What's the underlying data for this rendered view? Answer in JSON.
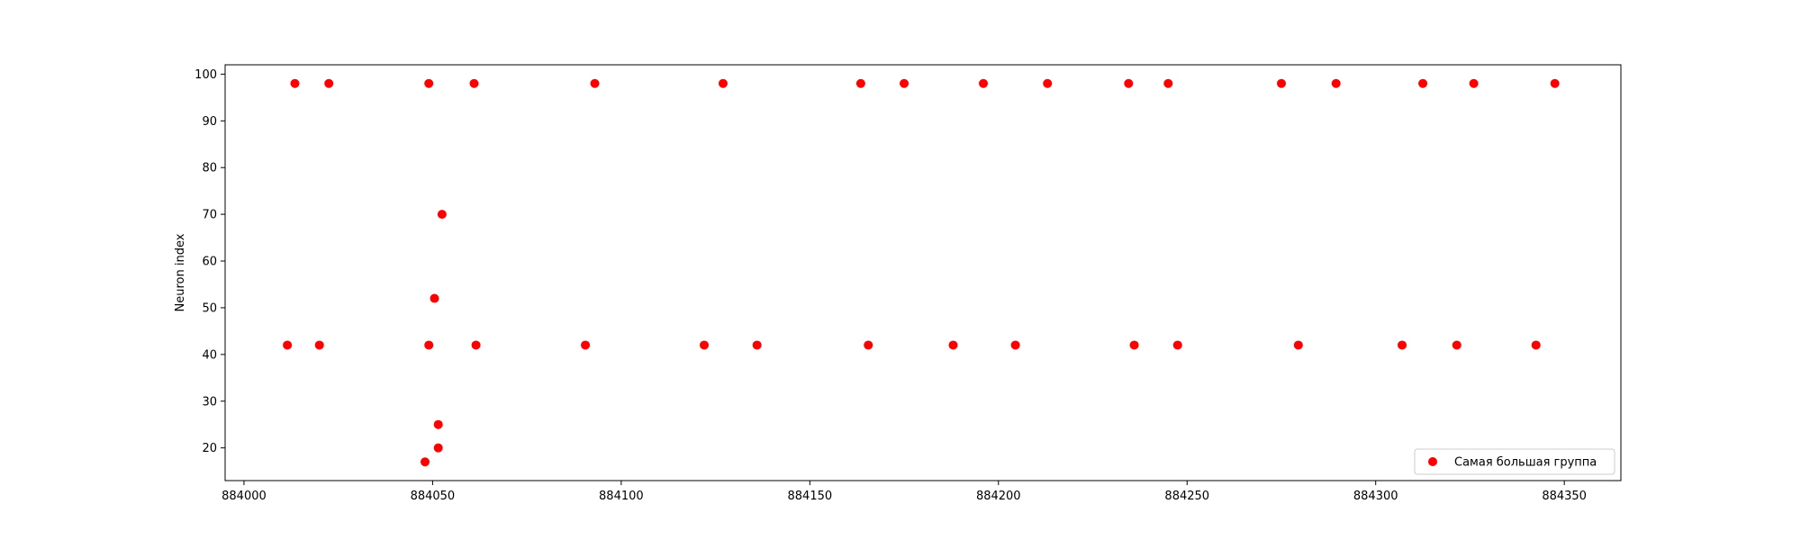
{
  "chart_data": {
    "type": "scatter",
    "title": "",
    "xlabel": "",
    "ylabel": "Neuron index",
    "xlim": [
      883995,
      884365
    ],
    "ylim": [
      13,
      102
    ],
    "xticks": [
      884000,
      884050,
      884100,
      884150,
      884200,
      884250,
      884300,
      884350
    ],
    "yticks": [
      20,
      30,
      40,
      50,
      60,
      70,
      80,
      90,
      100
    ],
    "grid": false,
    "legend_position": "lower-right",
    "series": [
      {
        "name": "Самая большая группа",
        "color": "#ff0000",
        "points": [
          {
            "x": 884013.5,
            "y": 98
          },
          {
            "x": 884022.5,
            "y": 98
          },
          {
            "x": 884049,
            "y": 98
          },
          {
            "x": 884061,
            "y": 98
          },
          {
            "x": 884093,
            "y": 98
          },
          {
            "x": 884127,
            "y": 98
          },
          {
            "x": 884163.5,
            "y": 98
          },
          {
            "x": 884175,
            "y": 98
          },
          {
            "x": 884196,
            "y": 98
          },
          {
            "x": 884213,
            "y": 98
          },
          {
            "x": 884234.5,
            "y": 98
          },
          {
            "x": 884245,
            "y": 98
          },
          {
            "x": 884275,
            "y": 98
          },
          {
            "x": 884289.5,
            "y": 98
          },
          {
            "x": 884312.5,
            "y": 98
          },
          {
            "x": 884326,
            "y": 98
          },
          {
            "x": 884347.5,
            "y": 98
          },
          {
            "x": 884011.5,
            "y": 42
          },
          {
            "x": 884020,
            "y": 42
          },
          {
            "x": 884049,
            "y": 42
          },
          {
            "x": 884061.5,
            "y": 42
          },
          {
            "x": 884090.5,
            "y": 42
          },
          {
            "x": 884122,
            "y": 42
          },
          {
            "x": 884136,
            "y": 42
          },
          {
            "x": 884165.5,
            "y": 42
          },
          {
            "x": 884188,
            "y": 42
          },
          {
            "x": 884204.5,
            "y": 42
          },
          {
            "x": 884236,
            "y": 42
          },
          {
            "x": 884247.5,
            "y": 42
          },
          {
            "x": 884279.5,
            "y": 42
          },
          {
            "x": 884307,
            "y": 42
          },
          {
            "x": 884321.5,
            "y": 42
          },
          {
            "x": 884342.5,
            "y": 42
          },
          {
            "x": 884052.5,
            "y": 70
          },
          {
            "x": 884050.5,
            "y": 52
          },
          {
            "x": 884051.5,
            "y": 25
          },
          {
            "x": 884051.5,
            "y": 20
          },
          {
            "x": 884048,
            "y": 17
          }
        ]
      }
    ]
  }
}
